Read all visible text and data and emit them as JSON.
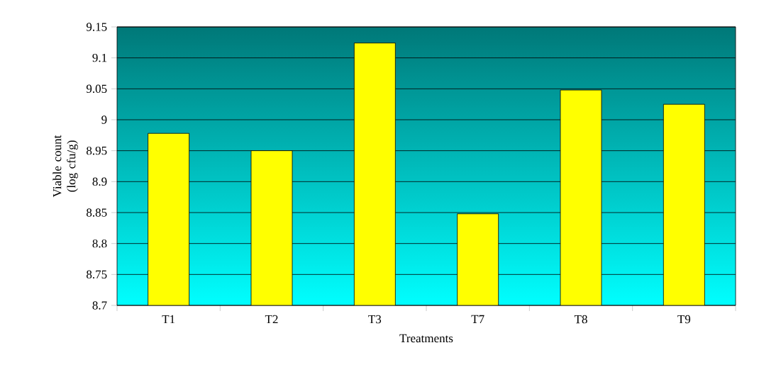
{
  "chart_data": {
    "type": "bar",
    "xlabel": "Treatments",
    "ylabel": "Viable count (log cfu/g)",
    "categories": [
      "T1",
      "T2",
      "T3",
      "T7",
      "T8",
      "T9"
    ],
    "values": [
      8.978,
      8.95,
      9.124,
      8.848,
      9.048,
      9.025
    ],
    "color": "#ffff00",
    "ylim": [
      8.7,
      9.15
    ],
    "yticks": [
      8.7,
      8.75,
      8.8,
      8.85,
      8.9,
      8.95,
      9,
      9.05,
      9.1,
      9.15
    ],
    "grid": "y"
  }
}
